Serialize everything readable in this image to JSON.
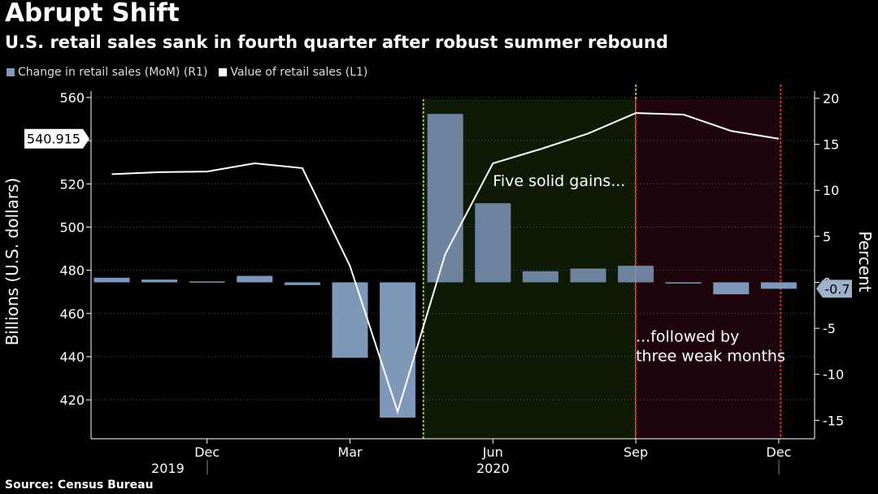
{
  "header": {
    "title": "Abrupt Shift",
    "subtitle": "U.S. retail sales sank in fourth quarter after robust summer rebound"
  },
  "source": "Source: Census Bureau",
  "colors": {
    "bar": "#7f97b8",
    "line": "#ffffff",
    "green_band": "#0f1a06",
    "red_band": "#1e050b",
    "green_edge": "#9ac23c",
    "red_edge": "#d7283a"
  },
  "chart_data": {
    "type": "bar",
    "months": [
      "Oct 2019",
      "Nov 2019",
      "Dec 2019",
      "Jan 2020",
      "Feb 2020",
      "Mar 2020",
      "Apr 2020",
      "May 2020",
      "Jun 2020",
      "Jul 2020",
      "Aug 2020",
      "Sep 2020",
      "Oct 2020",
      "Nov 2020",
      "Dec 2020"
    ],
    "series": [
      {
        "name": "Change in retail sales (MoM) (R1)",
        "type": "bar",
        "axis": "right",
        "values": [
          0.5,
          0.3,
          0.1,
          0.7,
          -0.3,
          -8.2,
          -14.7,
          18.3,
          8.6,
          1.2,
          1.5,
          1.8,
          -0.1,
          -1.3,
          -0.7
        ]
      },
      {
        "name": "Value of retail sales (L1)",
        "type": "line",
        "axis": "left",
        "values": [
          524.5,
          525.4,
          525.7,
          529.5,
          527.3,
          482.0,
          414.5,
          487.5,
          529.5,
          536.1,
          543.3,
          552.8,
          552.1,
          544.5,
          540.9
        ]
      }
    ],
    "last_value_left": "540.915",
    "last_value_right": "-0.7",
    "y_left": {
      "label": "Billions (U.S. dollars)",
      "range": [
        402,
        566
      ],
      "ticks": [
        "420",
        "440",
        "460",
        "480",
        "500",
        "520",
        "540",
        "560"
      ]
    },
    "y_right": {
      "label": "Percent",
      "range": [
        -17,
        21.5
      ],
      "ticks": [
        "-15",
        "-10",
        "-5",
        "0",
        "5",
        "10",
        "15",
        "20"
      ]
    },
    "x_ticks": [
      {
        "label": "Dec",
        "month_index": 2
      },
      {
        "label": "Mar",
        "month_index": 5
      },
      {
        "label": "Jun",
        "month_index": 8
      },
      {
        "label": "Sep",
        "month_index": 11
      },
      {
        "label": "Dec",
        "month_index": 14
      }
    ],
    "years": [
      {
        "label": "2019",
        "month_index": 2.2
      },
      {
        "label": "2020",
        "month_index": 8.0
      }
    ],
    "highlights": [
      {
        "from": "May 2020",
        "to": "Sep 2020",
        "color": "green"
      },
      {
        "from": "Sep 2020",
        "to": "Dec 2020",
        "color": "red"
      }
    ],
    "annotations": [
      {
        "text": [
          "Five solid gains..."
        ],
        "month_index": 8.0,
        "left_value": 519
      },
      {
        "text": [
          "...followed by",
          "three weak months"
        ],
        "month_index": 11.0,
        "left_value": 447
      }
    ],
    "grid": true,
    "legend_position": "top-left"
  }
}
